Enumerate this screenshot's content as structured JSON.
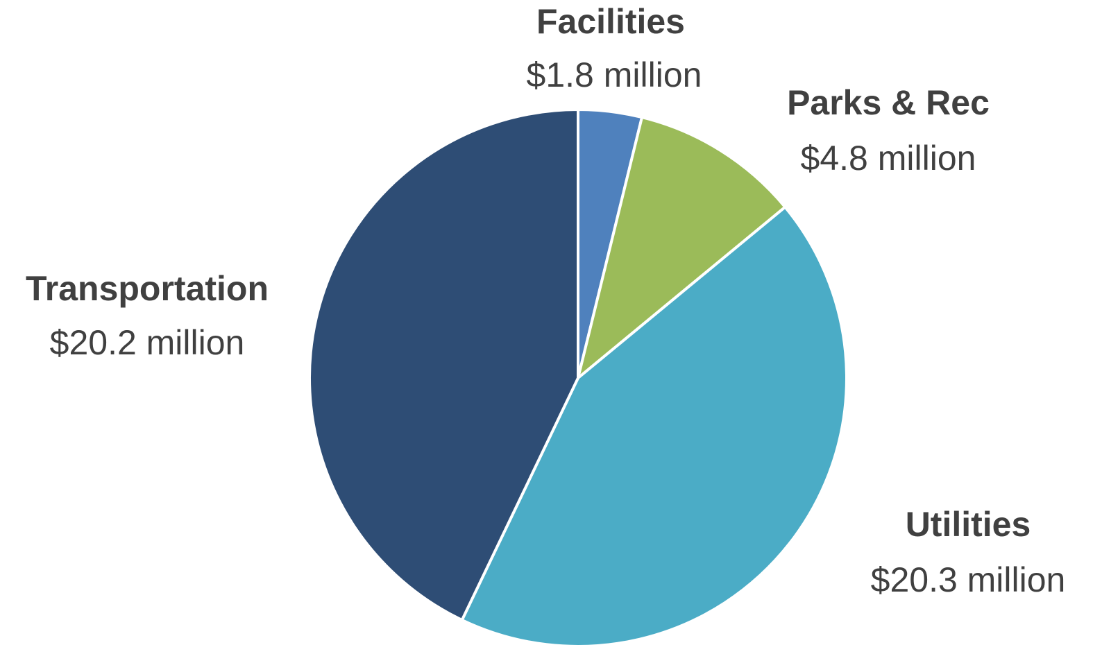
{
  "chart_data": {
    "type": "pie",
    "categories": [
      "Facilities",
      "Parks & Rec",
      "Utilities",
      "Transportation"
    ],
    "values": [
      1.8,
      4.8,
      20.3,
      20.2
    ],
    "value_labels": [
      "$1.8 million",
      "$4.8 million",
      "$20.3 million",
      "$20.2 million"
    ],
    "colors": [
      "#4f81bd",
      "#9bbb59",
      "#4bacc6",
      "#2e4d75"
    ]
  }
}
